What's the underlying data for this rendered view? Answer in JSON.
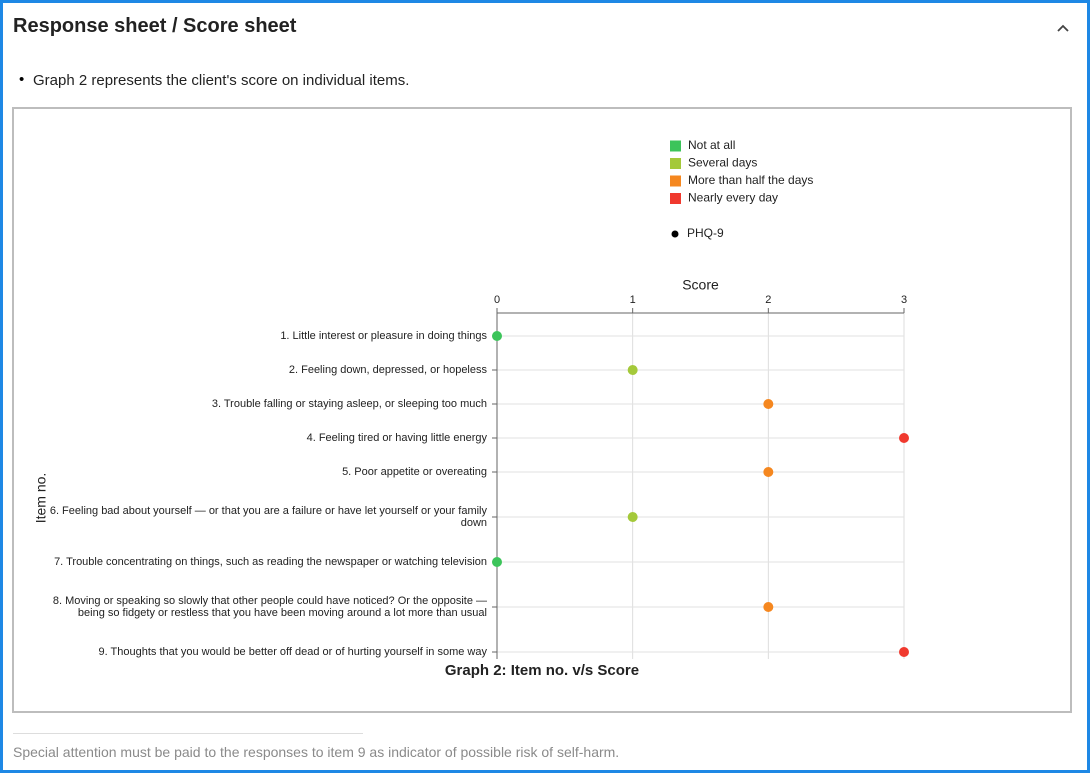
{
  "header": {
    "title": "Response sheet / Score sheet"
  },
  "bullet": "Graph 2 represents the client's score on individual items.",
  "chart_data": {
    "type": "dot",
    "title": "Graph 2: Item no. v/s Score",
    "x_label": "Score",
    "y_label": "Item no.",
    "categories": [
      "1. Little interest or pleasure in doing things",
      "2. Feeling down, depressed, or hopeless",
      "3. Trouble falling or staying asleep, or sleeping too much",
      "4. Feeling tired or having little energy",
      "5. Poor appetite or overeating",
      "6. Feeling bad about yourself — or that you are a failure or have let yourself or your family down",
      "7. Trouble concentrating on things, such as reading the newspaper or watching television",
      "8. Moving or speaking so slowly that other people could have noticed? Or the opposite — being so fidgety or restless that you have been moving around a lot more than usual",
      "9. Thoughts that you would be better off dead or of hurting yourself in some way"
    ],
    "series": [
      {
        "name": "PHQ-9",
        "color": "#000000",
        "values": [
          0,
          1,
          2,
          3,
          2,
          1,
          0,
          2,
          3
        ],
        "point_colors": [
          "#3cc45a",
          "#a4c93a",
          "#f5871f",
          "#f0392e",
          "#f5871f",
          "#a4c93a",
          "#3cc45a",
          "#f5871f",
          "#f0392e"
        ]
      }
    ],
    "legend": [
      {
        "name": "Not at all",
        "color": "#3cc45a"
      },
      {
        "name": "Several days",
        "color": "#a4c93a"
      },
      {
        "name": "More than half the days",
        "color": "#f5871f"
      },
      {
        "name": "Nearly every day",
        "color": "#f0392e"
      }
    ],
    "xlim": [
      0,
      3
    ],
    "xticks": [
      0,
      1,
      2,
      3
    ],
    "grid": true
  },
  "note": "Special attention must be paid to the responses to item 9 as indicator of possible risk of self-harm."
}
